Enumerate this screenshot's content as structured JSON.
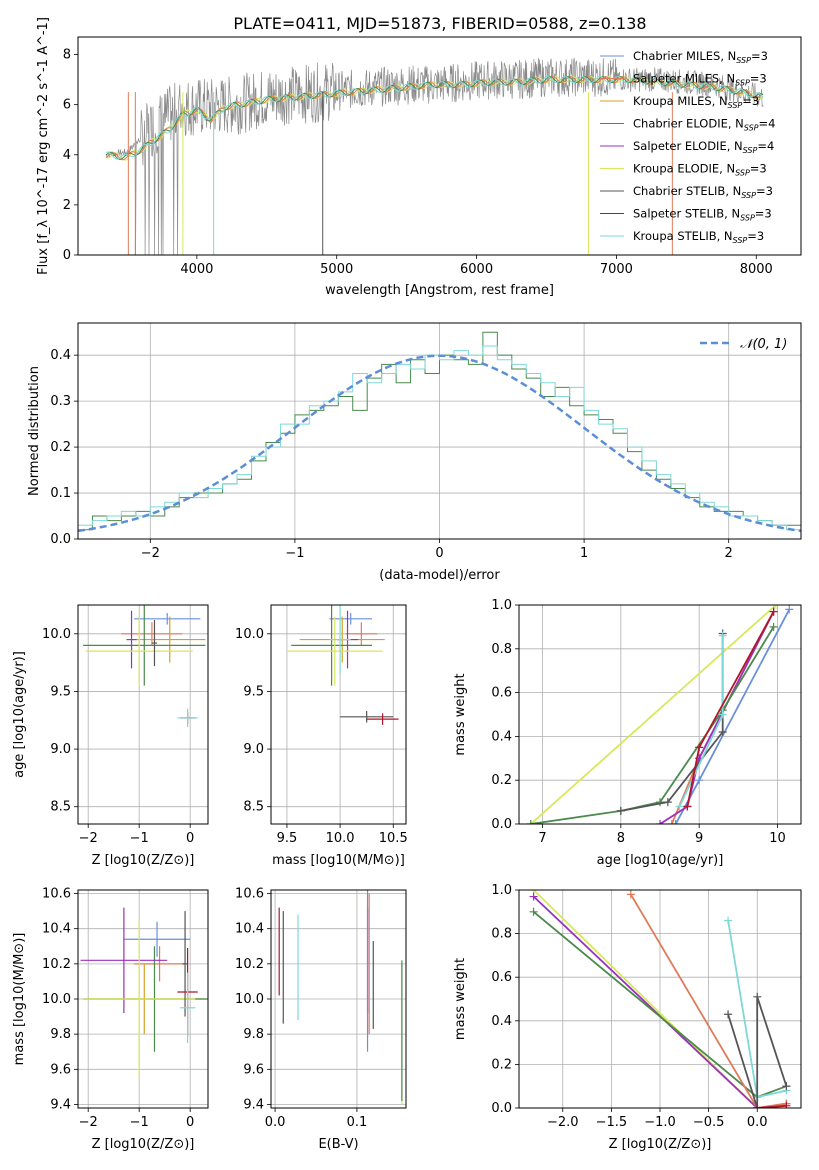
{
  "figure": {
    "title": "PLATE=0411, MJD=51873, FIBERID=0588, z=0.138"
  },
  "colors": {
    "Chabrier MILES": "#6a8fdc",
    "Salpeter MILES": "#e07b5a",
    "Kroupa MILES": "#d9a020",
    "Chabrier ELODIE": "#4a8a4a",
    "Salpeter ELODIE": "#9b30c0",
    "Kroupa ELODIE": "#d8e85a",
    "Chabrier STELIB": "#555555",
    "Salpeter STELIB": "#b01828",
    "Kroupa STELIB": "#7ed8d8"
  },
  "chart_data": [
    {
      "id": "spectrum",
      "type": "line",
      "xlabel": "wavelength [Angstrom, rest frame]",
      "ylabel": "Flux [f_λ 10^-17 erg cm^-2 s^-1 A^-1]",
      "xlim": [
        3150,
        8320
      ],
      "ylim": [
        0,
        8.7
      ],
      "xticks": [
        4000,
        5000,
        6000,
        7000,
        8000
      ],
      "yticks": [
        0,
        2,
        4,
        6,
        8
      ],
      "legend_position": "right",
      "legend": [
        {
          "label": "Chabrier MILES, N_SSP=3"
        },
        {
          "label": "Salpeter MILES, N_SSP=3"
        },
        {
          "label": "Kroupa MILES, N_SSP=3"
        },
        {
          "label": "Chabrier ELODIE, N_SSP=4"
        },
        {
          "label": "Salpeter ELODIE, N_SSP=4"
        },
        {
          "label": "Kroupa ELODIE, N_SSP=3"
        },
        {
          "label": "Chabrier STELIB, N_SSP=3"
        },
        {
          "label": "Salpeter STELIB, N_SSP=3"
        },
        {
          "label": "Kroupa STELIB, N_SSP=3"
        }
      ],
      "data_series": {
        "name": "data",
        "x": [
          3350,
          3500,
          3700,
          3900,
          4100,
          4300,
          4500,
          4700,
          4900,
          5100,
          5300,
          5500,
          5700,
          5900,
          6100,
          6300,
          6500,
          6700,
          6900,
          7100,
          7300,
          7500,
          7700,
          7900,
          8050
        ],
        "y": [
          4.0,
          4.1,
          5.2,
          5.9,
          5.9,
          6.0,
          6.3,
          6.4,
          6.5,
          6.6,
          6.7,
          6.8,
          6.8,
          6.9,
          7.0,
          7.0,
          7.1,
          7.1,
          7.1,
          7.0,
          7.0,
          6.9,
          6.8,
          6.5,
          6.3
        ]
      },
      "model_series": {
        "name": "model",
        "x": [
          3350,
          3500,
          3600,
          3700,
          3800,
          3900,
          4000,
          4100,
          4200,
          4300,
          4500,
          4700,
          4900,
          5100,
          5300,
          5500,
          5700,
          5900,
          6100,
          6300,
          6500,
          6700,
          6900,
          7100,
          7300,
          7500,
          7700,
          7900,
          8050
        ],
        "y": [
          4.0,
          3.9,
          4.2,
          4.6,
          5.0,
          5.6,
          5.8,
          5.4,
          5.9,
          6.0,
          6.2,
          6.3,
          6.4,
          6.5,
          6.6,
          6.7,
          6.8,
          6.8,
          6.9,
          6.9,
          7.0,
          7.0,
          7.0,
          7.0,
          6.9,
          6.8,
          6.7,
          6.5,
          6.3
        ]
      }
    },
    {
      "id": "residuals",
      "type": "histogram",
      "xlabel": "(data-model)/error",
      "ylabel": "Normed distribution",
      "xlim": [
        -2.5,
        2.5
      ],
      "ylim": [
        0,
        0.47
      ],
      "xticks": [
        -2,
        -1,
        0,
        1,
        2
      ],
      "yticks": [
        0.0,
        0.1,
        0.2,
        0.3,
        0.4
      ],
      "legend_position": "top-right",
      "legend": [
        {
          "label": "𝒩(0, 1)"
        }
      ],
      "bin_start": -2.5,
      "bin_width": 0.1,
      "series": [
        {
          "name": "Chabrier ELODIE",
          "values": [
            0.02,
            0.05,
            0.04,
            0.05,
            0.06,
            0.05,
            0.07,
            0.09,
            0.1,
            0.1,
            0.12,
            0.13,
            0.17,
            0.21,
            0.23,
            0.27,
            0.28,
            0.29,
            0.31,
            0.28,
            0.35,
            0.38,
            0.34,
            0.39,
            0.36,
            0.4,
            0.39,
            0.38,
            0.45,
            0.4,
            0.37,
            0.35,
            0.31,
            0.33,
            0.29,
            0.27,
            0.26,
            0.23,
            0.19,
            0.15,
            0.13,
            0.11,
            0.09,
            0.07,
            0.06,
            0.06,
            0.05,
            0.04,
            0.03,
            0.03
          ]
        },
        {
          "name": "Kroupa STELIB",
          "values": [
            0.03,
            0.04,
            0.05,
            0.06,
            0.05,
            0.07,
            0.08,
            0.1,
            0.09,
            0.11,
            0.12,
            0.14,
            0.18,
            0.2,
            0.25,
            0.25,
            0.29,
            0.3,
            0.32,
            0.36,
            0.34,
            0.36,
            0.38,
            0.37,
            0.4,
            0.39,
            0.41,
            0.4,
            0.42,
            0.39,
            0.38,
            0.36,
            0.34,
            0.31,
            0.33,
            0.28,
            0.25,
            0.24,
            0.2,
            0.17,
            0.14,
            0.12,
            0.1,
            0.08,
            0.07,
            0.05,
            0.05,
            0.04,
            0.03,
            0.02
          ]
        }
      ],
      "normal_curve": {
        "name": "𝒩(0, 1)",
        "mean": 0,
        "sigma": 1
      }
    },
    {
      "id": "age-vs-Z",
      "type": "errorbar",
      "xlabel": "Z [log10(Z/Z⊙)]",
      "ylabel": "age [log10(age/yr)]",
      "xlim": [
        -2.2,
        0.35
      ],
      "ylim": [
        8.35,
        10.25
      ],
      "xticks": [
        -2,
        -1,
        0
      ],
      "yticks": [
        8.5,
        9.0,
        9.5,
        10.0
      ],
      "points": [
        {
          "model": "Chabrier MILES",
          "x": -0.45,
          "y": 10.13,
          "xerr": 0.65,
          "yerr": 0.05
        },
        {
          "model": "Salpeter MILES",
          "x": -0.75,
          "y": 10.0,
          "xerr": 0.6,
          "yerr": 0.1
        },
        {
          "model": "Kroupa MILES",
          "x": -0.4,
          "y": 9.95,
          "xerr": 0.7,
          "yerr": 0.2
        },
        {
          "model": "Chabrier ELODIE",
          "x": -0.9,
          "y": 9.9,
          "xerr": 1.2,
          "yerr": 0.35
        },
        {
          "model": "Salpeter ELODIE",
          "x": -1.15,
          "y": 9.95,
          "xerr": 0.1,
          "yerr": 0.25
        },
        {
          "model": "Kroupa ELODIE",
          "x": -1.0,
          "y": 9.85,
          "xerr": 1.05,
          "yerr": 0.3
        },
        {
          "model": "Chabrier STELIB",
          "x": -0.7,
          "y": 9.92,
          "xerr": 0.05,
          "yerr": 0.2
        },
        {
          "model": "Salpeter STELIB",
          "x": -0.05,
          "y": 9.27,
          "xerr": 0.15,
          "yerr": 0.05
        },
        {
          "model": "Kroupa STELIB",
          "x": -0.05,
          "y": 9.27,
          "xerr": 0.2,
          "yerr": 0.08
        }
      ]
    },
    {
      "id": "age-vs-mass",
      "type": "errorbar",
      "xlabel": "mass [log10(M/M⊙)]",
      "ylabel": "",
      "xlim": [
        9.35,
        10.62
      ],
      "ylim": [
        8.35,
        10.25
      ],
      "xticks": [
        9.5,
        10.0,
        10.5
      ],
      "yticks": [
        8.5,
        9.0,
        9.5,
        10.0
      ],
      "points": [
        {
          "model": "Chabrier MILES",
          "x": 10.1,
          "y": 10.13,
          "xerr": 0.2,
          "yerr": 0.05
        },
        {
          "model": "Salpeter MILES",
          "x": 10.2,
          "y": 10.0,
          "xerr": 0.15,
          "yerr": 0.1
        },
        {
          "model": "Kroupa MILES",
          "x": 10.02,
          "y": 9.95,
          "xerr": 0.4,
          "yerr": 0.2
        },
        {
          "model": "Chabrier ELODIE",
          "x": 9.92,
          "y": 9.9,
          "xerr": 0.38,
          "yerr": 0.35
        },
        {
          "model": "Salpeter ELODIE",
          "x": 10.07,
          "y": 9.95,
          "xerr": 0.1,
          "yerr": 0.25
        },
        {
          "model": "Kroupa ELODIE",
          "x": 9.95,
          "y": 9.85,
          "xerr": 0.45,
          "yerr": 0.3
        },
        {
          "model": "Chabrier STELIB",
          "x": 10.25,
          "y": 9.28,
          "xerr": 0.25,
          "yerr": 0.05
        },
        {
          "model": "Salpeter STELIB",
          "x": 10.4,
          "y": 9.26,
          "xerr": 0.15,
          "yerr": 0.05
        },
        {
          "model": "Kroupa STELIB",
          "x": 10.0,
          "y": 9.95,
          "xerr": 0.1,
          "yerr": 0.3
        }
      ]
    },
    {
      "id": "weight-vs-age",
      "type": "line",
      "xlabel": "age [log10(age/yr)]",
      "ylabel": "mass weight",
      "xlim": [
        6.7,
        10.3
      ],
      "ylim": [
        0,
        1.0
      ],
      "xticks": [
        7,
        8,
        9,
        10
      ],
      "yticks": [
        0.0,
        0.2,
        0.4,
        0.6,
        0.8,
        1.0
      ],
      "series": [
        {
          "model": "Kroupa ELODIE",
          "x": [
            6.85,
            9.98
          ],
          "y": [
            0.0,
            1.0
          ]
        },
        {
          "model": "Chabrier MILES",
          "x": [
            8.7,
            9.0,
            10.15
          ],
          "y": [
            0.0,
            0.2,
            0.98
          ]
        },
        {
          "model": "Salpeter MILES",
          "x": [
            8.65,
            9.0,
            9.95
          ],
          "y": [
            0.0,
            0.3,
            0.97
          ]
        },
        {
          "model": "Salpeter ELODIE",
          "x": [
            8.5,
            8.85,
            9.0,
            9.95
          ],
          "y": [
            0.0,
            0.08,
            0.3,
            0.97
          ]
        },
        {
          "model": "Chabrier ELODIE",
          "x": [
            6.85,
            8.0,
            8.5,
            9.3,
            9.95
          ],
          "y": [
            0.0,
            0.06,
            0.1,
            0.52,
            0.9
          ]
        },
        {
          "model": "Chabrier STELIB",
          "x": [
            8.0,
            8.6,
            9.3,
            9.3
          ],
          "y": [
            0.06,
            0.1,
            0.42,
            0.87
          ]
        },
        {
          "model": "Kroupa STELIB",
          "x": [
            8.75,
            9.3,
            9.3
          ],
          "y": [
            0.08,
            0.5,
            0.86
          ]
        },
        {
          "model": "Salpeter STELIB",
          "x": [
            8.85,
            9.0,
            9.95
          ],
          "y": [
            0.08,
            0.35,
            0.97
          ]
        }
      ]
    },
    {
      "id": "mass-vs-Z",
      "type": "errorbar",
      "xlabel": "Z [log10(Z/Z⊙)]",
      "ylabel": "mass [log10(M/M⊙)]",
      "xlim": [
        -2.2,
        0.35
      ],
      "ylim": [
        9.38,
        10.62
      ],
      "xticks": [
        -2,
        -1,
        0
      ],
      "yticks": [
        9.4,
        9.6,
        9.8,
        10.0,
        10.2,
        10.4,
        10.6
      ],
      "points": [
        {
          "model": "Chabrier MILES",
          "x": -0.65,
          "y": 10.34,
          "xerr": 0.65,
          "yerr": 0.1
        },
        {
          "model": "Salpeter MILES",
          "x": -0.6,
          "y": 10.2,
          "xerr": 0.5,
          "yerr": 0.1
        },
        {
          "model": "Kroupa MILES",
          "x": -0.9,
          "y": 10.0,
          "xerr": 1.2,
          "yerr": 0.2
        },
        {
          "model": "Chabrier ELODIE",
          "x": -0.7,
          "y": 10.0,
          "xerr": 1.4,
          "yerr": 0.3
        },
        {
          "model": "Salpeter ELODIE",
          "x": -1.3,
          "y": 10.22,
          "xerr": 0.85,
          "yerr": 0.3
        },
        {
          "model": "Kroupa ELODIE",
          "x": -1.0,
          "y": 10.0,
          "xerr": 1.1,
          "yerr": 0.45
        },
        {
          "model": "Chabrier STELIB",
          "x": -0.1,
          "y": 10.2,
          "xerr": 0.05,
          "yerr": 0.3
        },
        {
          "model": "Salpeter STELIB",
          "x": -0.05,
          "y": 10.04,
          "xerr": 0.2,
          "yerr": 0.25
        },
        {
          "model": "Kroupa STELIB",
          "x": -0.05,
          "y": 9.95,
          "xerr": 0.15,
          "yerr": 0.2
        }
      ]
    },
    {
      "id": "mass-vs-EBV",
      "type": "errorbar",
      "xlabel": "E(B-V)",
      "ylabel": "",
      "xlim": [
        -0.005,
        0.16
      ],
      "ylim": [
        9.38,
        10.62
      ],
      "xticks": [
        0.0,
        0.1
      ],
      "yticks": [
        9.4,
        9.6,
        9.8,
        10.0,
        10.2,
        10.4,
        10.6
      ],
      "points": [
        {
          "model": "Chabrier STELIB",
          "x": 0.01,
          "y": 10.18,
          "yerr": 0.32
        },
        {
          "model": "Salpeter STELIB",
          "x": 0.005,
          "y": 10.27,
          "yerr": 0.25
        },
        {
          "model": "Kroupa STELIB",
          "x": 0.028,
          "y": 10.18,
          "yerr": 0.3
        },
        {
          "model": "Salpeter ELODIE",
          "x": 0.113,
          "y": 10.22,
          "yerr": 0.3
        },
        {
          "model": "Chabrier MILES",
          "x": 0.113,
          "y": 10.2,
          "yerr": 0.5
        },
        {
          "model": "Salpeter MILES",
          "x": 0.115,
          "y": 10.2,
          "yerr": 0.4
        },
        {
          "model": "Chabrier STELIB",
          "x": 0.12,
          "y": 10.08,
          "yerr": 0.25
        },
        {
          "model": "Kroupa ELODIE",
          "x": 0.155,
          "y": 9.8,
          "yerr": 0.4
        },
        {
          "model": "Chabrier ELODIE",
          "x": 0.155,
          "y": 9.82,
          "yerr": 0.4
        }
      ]
    },
    {
      "id": "weight-vs-Z",
      "type": "line",
      "xlabel": "Z [log10(Z/Z⊙)]",
      "ylabel": "mass weight",
      "xlim": [
        -2.45,
        0.45
      ],
      "ylim": [
        0,
        1.0
      ],
      "xticks": [
        -2.0,
        -1.5,
        -1.0,
        -0.5,
        0.0
      ],
      "yticks": [
        0.0,
        0.2,
        0.4,
        0.6,
        0.8,
        1.0
      ],
      "series": [
        {
          "model": "Kroupa ELODIE",
          "x": [
            -2.3,
            0.0
          ],
          "y": [
            1.0,
            0.0
          ]
        },
        {
          "model": "Salpeter ELODIE",
          "x": [
            -2.3,
            0.0,
            0.3
          ],
          "y": [
            0.97,
            0.0,
            0.02
          ]
        },
        {
          "model": "Chabrier ELODIE",
          "x": [
            -2.3,
            0.0,
            0.3
          ],
          "y": [
            0.9,
            0.05,
            0.1
          ]
        },
        {
          "model": "Salpeter MILES",
          "x": [
            -1.3,
            0.0,
            0.3
          ],
          "y": [
            0.98,
            0.0,
            0.02
          ]
        },
        {
          "model": "Kroupa STELIB",
          "x": [
            -0.3,
            0.0,
            0.3
          ],
          "y": [
            0.86,
            0.05,
            0.08
          ]
        },
        {
          "model": "Chabrier STELIB",
          "x": [
            -0.3,
            0.0,
            0.0,
            0.3
          ],
          "y": [
            0.43,
            0.0,
            0.51,
            0.1
          ]
        },
        {
          "model": "Salpeter STELIB",
          "x": [
            0.0,
            0.3
          ],
          "y": [
            0.0,
            0.01
          ]
        }
      ]
    }
  ]
}
